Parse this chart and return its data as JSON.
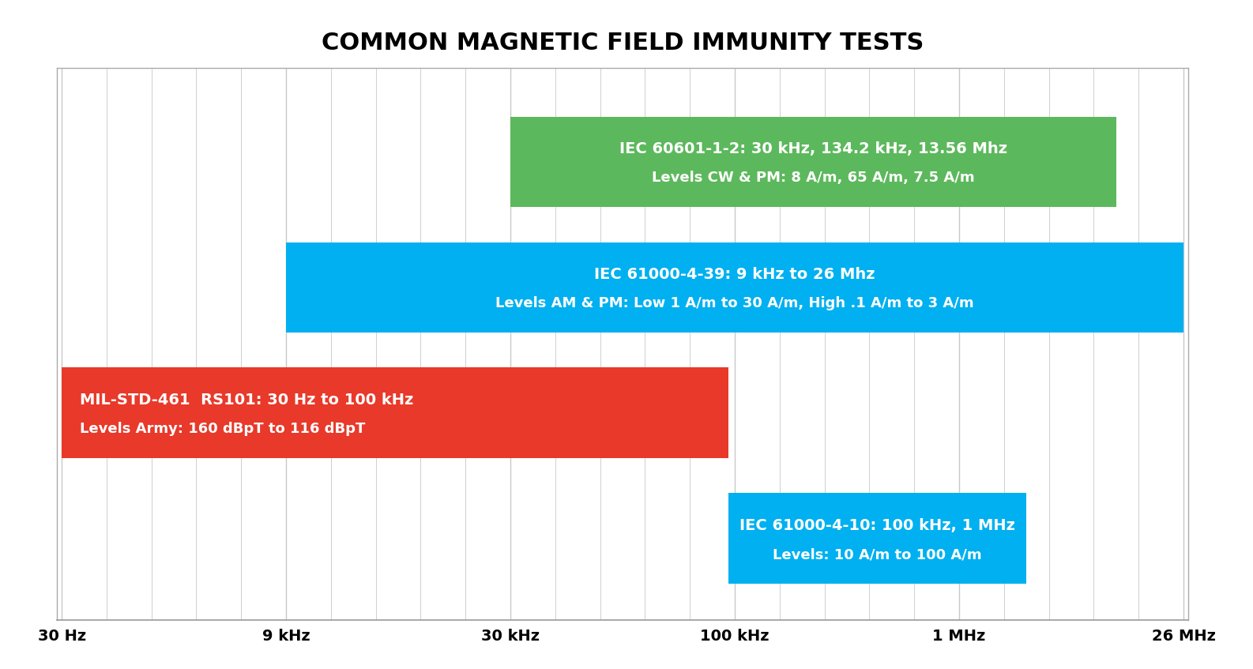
{
  "title": "COMMON MAGNETIC FIELD IMMUNITY TESTS",
  "title_fontsize": 22,
  "title_fontweight": "bold",
  "background_color": "#ffffff",
  "plot_bg_color": "#ffffff",
  "grid_color": "#c8c8c8",
  "x_ticks_labels": [
    "30 Hz",
    "9 kHz",
    "30 kHz",
    "100 kHz",
    "1 MHz",
    "26 MHz"
  ],
  "x_ticks_positions": [
    0,
    1,
    2,
    3,
    4,
    5
  ],
  "num_minor_grid_lines": 4,
  "bars": [
    {
      "y": 3,
      "x_start": 2,
      "x_end": 4.7,
      "color": "#5cb85c",
      "line1": "IEC 60601-1-2: 30 kHz, 134.2 kHz, 13.56 Mhz",
      "line2": "Levels CW & PM: 8 A/m, 65 A/m, 7.5 A/m",
      "text_color": "#ffffff",
      "text_align": "center",
      "height": 0.72
    },
    {
      "y": 2,
      "x_start": 1,
      "x_end": 5,
      "color": "#00b0f0",
      "line1": "IEC 61000-4-39: 9 kHz to 26 Mhz",
      "line2": "Levels AM & PM: Low 1 A/m to 30 A/m, High .1 A/m to 3 A/m",
      "text_color": "#ffffff",
      "text_align": "center",
      "height": 0.72
    },
    {
      "y": 1,
      "x_start": 0,
      "x_end": 2.97,
      "color": "#e8392a",
      "line1": "MIL-STD-461  RS101: 30 Hz to 100 kHz",
      "line2": "Levels Army: 160 dBpT to 116 dBpT",
      "text_color": "#ffffff",
      "text_align": "left",
      "height": 0.72
    },
    {
      "y": 0,
      "x_start": 2.97,
      "x_end": 4.3,
      "color": "#00b0f0",
      "line1": "IEC 61000-4-10: 100 kHz, 1 MHz",
      "line2": "Levels: 10 A/m to 100 A/m",
      "text_color": "#ffffff",
      "text_align": "center",
      "height": 0.72
    }
  ],
  "ylim": [
    -0.65,
    3.75
  ],
  "xlim": [
    -0.02,
    5.02
  ],
  "figsize": [
    15.86,
    8.47
  ],
  "dpi": 100,
  "line1_fontsize": 14,
  "line2_fontsize": 13
}
